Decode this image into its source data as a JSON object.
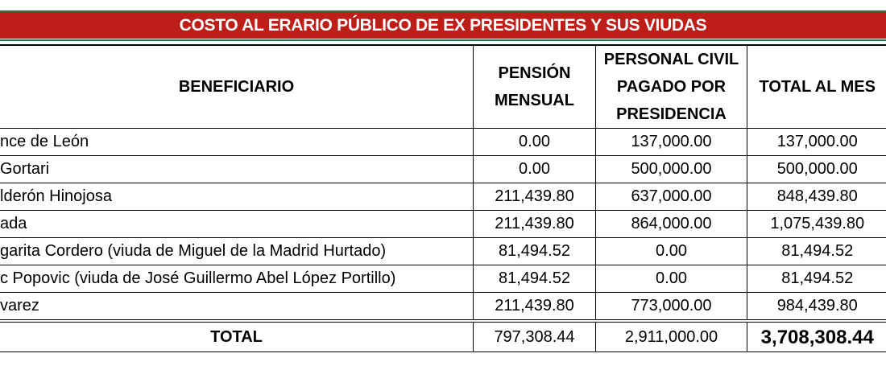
{
  "title": "COSTO AL ERARIO PÚBLICO DE EX PRESIDENTES Y SUS VIUDAS",
  "columns": [
    "BENEFICIARIO",
    "PENSIÓN MENSUAL",
    "PERSONAL CIVIL PAGADO POR PRESIDENCIA",
    "TOTAL AL MES"
  ],
  "rows": [
    {
      "name": "nce de León",
      "pension": "0.00",
      "personal": "137,000.00",
      "total": "137,000.00"
    },
    {
      "name": "Gortari",
      "pension": "0.00",
      "personal": "500,000.00",
      "total": "500,000.00"
    },
    {
      "name": "lderón Hinojosa",
      "pension": "211,439.80",
      "personal": "637,000.00",
      "total": "848,439.80"
    },
    {
      "name": "ada",
      "pension": "211,439.80",
      "personal": "864,000.00",
      "total": "1,075,439.80"
    },
    {
      "name": "garita Cordero (viuda de Miguel de la Madrid Hurtado)",
      "pension": "81,494.52",
      "personal": "0.00",
      "total": "81,494.52"
    },
    {
      "name": "c Popovic (viuda de José Guillermo Abel López Portillo)",
      "pension": "81,494.52",
      "personal": "0.00",
      "total": "81,494.52"
    },
    {
      "name": "varez",
      "pension": "211,439.80",
      "personal": "773,000.00",
      "total": "984,439.80"
    }
  ],
  "totals": {
    "label": "TOTAL",
    "pension": "797,308.44",
    "personal": "2,911,000.00",
    "total": "3,708,308.44"
  },
  "colors": {
    "banner": "#bd1e18",
    "rule": "#2f6f47"
  }
}
